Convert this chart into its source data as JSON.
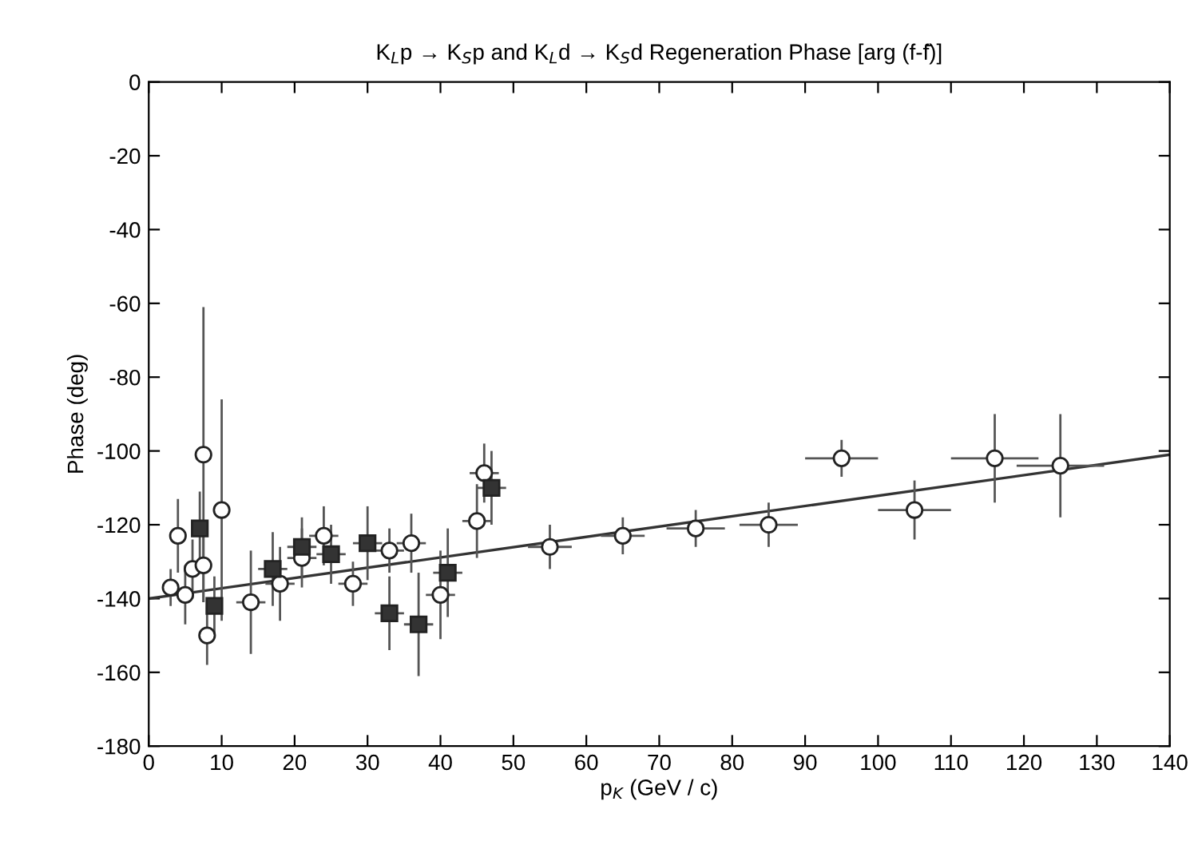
{
  "chart_data": {
    "type": "scatter",
    "title": "K$_{L}$p → K$_{S}$p and K$_{L}$d → K$_{S}$d Regeneration Phase [arg (f-f̄)]",
    "xlabel": "p$_{K}$ (GeV / c)",
    "ylabel": "Phase (deg)",
    "xlim": [
      0,
      140
    ],
    "ylim": [
      -180,
      0
    ],
    "xticks": [
      0,
      10,
      20,
      30,
      40,
      50,
      60,
      70,
      80,
      90,
      100,
      110,
      120,
      130,
      140
    ],
    "yticks": [
      -180,
      -160,
      -140,
      -120,
      -100,
      -80,
      -60,
      -40,
      -20,
      0
    ],
    "grid": false,
    "series": [
      {
        "marker": "circle",
        "color": "#ffffff",
        "x": [
          3,
          4,
          5,
          6,
          7.5,
          7.5,
          8,
          10,
          14,
          18,
          21,
          24,
          28,
          33,
          36,
          40,
          45,
          46,
          55,
          65,
          75,
          85,
          95,
          105,
          116,
          125
        ],
        "values": [
          -137,
          -123,
          -139,
          -132,
          -101,
          -131,
          -150,
          -116,
          -141,
          -136,
          -129,
          -123,
          -136,
          -127,
          -125,
          -139,
          -119,
          -106,
          -126,
          -123,
          -121,
          -120,
          -102,
          -116,
          -102,
          -104
        ],
        "errors": [
          5,
          10,
          8,
          8,
          40,
          10,
          8,
          30,
          14,
          10,
          8,
          8,
          6,
          6,
          8,
          12,
          10,
          8,
          6,
          5,
          5,
          6,
          5,
          8,
          12,
          14
        ],
        "xerrors": [
          1,
          1,
          1,
          1,
          1,
          1,
          1,
          1,
          2,
          2,
          2,
          2,
          2,
          2,
          2,
          2,
          2,
          2,
          3,
          3,
          4,
          4,
          5,
          5,
          6,
          6
        ]
      },
      {
        "marker": "square",
        "color": "#333333",
        "x": [
          7,
          9,
          17,
          21,
          25,
          30,
          33,
          37,
          41,
          47
        ],
        "values": [
          -121,
          -142,
          -132,
          -126,
          -128,
          -125,
          -144,
          -147,
          -133,
          -110
        ],
        "errors": [
          10,
          8,
          10,
          8,
          8,
          10,
          10,
          14,
          12,
          10
        ],
        "xerrors": [
          1,
          1,
          2,
          2,
          2,
          2,
          2,
          2,
          2,
          2
        ]
      },
      {
        "type": "line",
        "color": "#333333",
        "marker": "none",
        "x": [
          0,
          140
        ],
        "values": [
          -140,
          -101
        ]
      }
    ]
  }
}
